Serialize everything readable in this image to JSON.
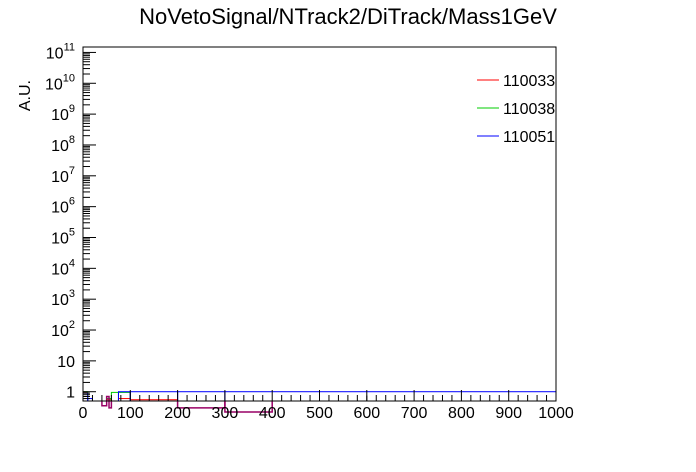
{
  "chart_data": {
    "type": "line",
    "title": "NoVetoSignal/NTrack2/DiTrack/Mass1GeV",
    "xlabel": "",
    "ylabel": "A.U.",
    "xlim": [
      0,
      1000
    ],
    "ylim": [
      0.5,
      150000000000
    ],
    "yscale": "log",
    "grid": false,
    "legend_position": "top-right",
    "x_ticks": [
      "0",
      "100",
      "200",
      "300",
      "400",
      "500",
      "600",
      "700",
      "800",
      "900",
      "1000"
    ],
    "y_ticks": [
      {
        "value": 1,
        "base": "1",
        "exp": ""
      },
      {
        "value": 10,
        "base": "10",
        "exp": ""
      },
      {
        "value": 100,
        "base": "10",
        "exp": "2"
      },
      {
        "value": 1000,
        "base": "10",
        "exp": "3"
      },
      {
        "value": 10000,
        "base": "10",
        "exp": "4"
      },
      {
        "value": 100000,
        "base": "10",
        "exp": "5"
      },
      {
        "value": 1000000,
        "base": "10",
        "exp": "6"
      },
      {
        "value": 10000000,
        "base": "10",
        "exp": "7"
      },
      {
        "value": 100000000,
        "base": "10",
        "exp": "8"
      },
      {
        "value": 1000000000,
        "base": "10",
        "exp": "9"
      },
      {
        "value": 10000000000,
        "base": "10",
        "exp": "10"
      },
      {
        "value": 100000000000,
        "base": "10",
        "exp": "11"
      }
    ],
    "series": [
      {
        "name": "110033",
        "color": "#ff0000",
        "bins": [
          [
            0,
            10,
            0.95
          ],
          [
            10,
            20,
            0.45
          ],
          [
            20,
            30,
            0.3
          ],
          [
            30,
            40,
            0.2
          ],
          [
            40,
            50,
            0.28
          ],
          [
            50,
            60,
            0.55
          ],
          [
            60,
            75,
            0.35
          ],
          [
            75,
            100,
            0.6
          ],
          [
            100,
            200,
            0.55
          ],
          [
            200,
            300,
            0.35
          ],
          [
            300,
            500,
            0.22
          ],
          [
            500,
            1000,
            0.5
          ]
        ]
      },
      {
        "name": "110038",
        "color": "#00cc00",
        "bins": [
          [
            0,
            10,
            1.0
          ],
          [
            10,
            20,
            0.5
          ],
          [
            20,
            30,
            0.25
          ],
          [
            30,
            40,
            0.35
          ],
          [
            40,
            50,
            0.3
          ],
          [
            50,
            60,
            0.6
          ],
          [
            60,
            75,
            0.95
          ],
          [
            75,
            100,
            0.95
          ],
          [
            100,
            200,
            0.32
          ],
          [
            200,
            300,
            0.42
          ],
          [
            300,
            500,
            0.25
          ],
          [
            500,
            1000,
            0.35
          ]
        ]
      },
      {
        "name": "110051",
        "color": "#0000ff",
        "bins": [
          [
            0,
            10,
            0.9
          ],
          [
            10,
            20,
            0.6
          ],
          [
            20,
            30,
            0.22
          ],
          [
            30,
            40,
            0.25
          ],
          [
            40,
            50,
            0.27
          ],
          [
            50,
            60,
            0.5
          ],
          [
            60,
            75,
            0.25
          ],
          [
            75,
            100,
            1.0
          ],
          [
            100,
            200,
            1.0
          ],
          [
            200,
            300,
            1.0
          ],
          [
            300,
            500,
            1.0
          ],
          [
            500,
            1000,
            1.0
          ]
        ]
      }
    ],
    "overlay_color": "#990066"
  }
}
